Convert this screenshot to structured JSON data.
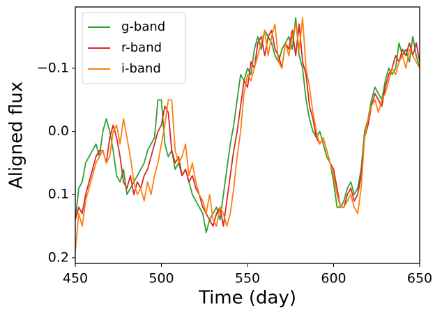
{
  "chart_data": {
    "type": "line",
    "x_label": "Time (day)",
    "y_label": "Aligned flux",
    "x": [
      450,
      452,
      454,
      456,
      458,
      460,
      462,
      464,
      466,
      468,
      470,
      472,
      474,
      476,
      478,
      480,
      482,
      484,
      486,
      488,
      490,
      492,
      494,
      496,
      498,
      500,
      502,
      504,
      506,
      508,
      510,
      512,
      514,
      516,
      518,
      520,
      522,
      524,
      526,
      528,
      530,
      532,
      534,
      536,
      538,
      540,
      542,
      544,
      546,
      548,
      550,
      552,
      554,
      556,
      558,
      560,
      562,
      564,
      566,
      568,
      570,
      572,
      574,
      576,
      578,
      580,
      582,
      584,
      586,
      588,
      590,
      592,
      594,
      596,
      598,
      600,
      602,
      604,
      606,
      608,
      610,
      612,
      614,
      616,
      618,
      620,
      622,
      624,
      626,
      628,
      630,
      632,
      634,
      636,
      638,
      640,
      642,
      644,
      646,
      648,
      650
    ],
    "series": [
      {
        "name": "g-band",
        "color": "#2ca02c",
        "values": [
          0.14,
          0.09,
          0.08,
          0.05,
          0.04,
          0.03,
          0.02,
          0.04,
          0.0,
          -0.02,
          0.0,
          0.03,
          0.07,
          0.08,
          0.06,
          0.1,
          0.09,
          0.08,
          0.07,
          0.06,
          0.05,
          0.03,
          0.02,
          0.01,
          -0.05,
          -0.05,
          0.02,
          0.04,
          0.03,
          0.06,
          0.05,
          0.07,
          0.06,
          0.08,
          0.1,
          0.11,
          0.12,
          0.13,
          0.16,
          0.14,
          0.13,
          0.12,
          0.14,
          0.1,
          0.06,
          0.02,
          -0.01,
          -0.05,
          -0.09,
          -0.08,
          -0.1,
          -0.09,
          -0.13,
          -0.15,
          -0.13,
          -0.16,
          -0.15,
          -0.14,
          -0.12,
          -0.11,
          -0.13,
          -0.14,
          -0.15,
          -0.13,
          -0.18,
          -0.12,
          -0.1,
          -0.05,
          -0.02,
          0.0,
          0.01,
          0.0,
          0.02,
          0.04,
          0.05,
          0.08,
          0.12,
          0.12,
          0.11,
          0.09,
          0.08,
          0.1,
          0.09,
          0.06,
          0.0,
          -0.02,
          -0.05,
          -0.07,
          -0.06,
          -0.05,
          -0.08,
          -0.1,
          -0.09,
          -0.1,
          -0.14,
          -0.12,
          -0.13,
          -0.11,
          -0.15,
          -0.12,
          -0.1
        ]
      },
      {
        "name": "r-band",
        "color": "#d62728",
        "values": [
          0.14,
          0.12,
          0.13,
          0.1,
          0.08,
          0.06,
          0.04,
          0.03,
          0.03,
          0.05,
          0.01,
          -0.01,
          0.01,
          0.04,
          0.08,
          0.09,
          0.07,
          0.1,
          0.08,
          0.09,
          0.07,
          0.06,
          0.04,
          0.02,
          0.0,
          -0.01,
          -0.04,
          -0.03,
          0.03,
          0.05,
          0.04,
          0.07,
          0.06,
          0.08,
          0.07,
          0.09,
          0.1,
          0.12,
          0.13,
          0.14,
          0.15,
          0.13,
          0.12,
          0.15,
          0.11,
          0.07,
          0.03,
          0.0,
          -0.04,
          -0.08,
          -0.07,
          -0.11,
          -0.1,
          -0.14,
          -0.15,
          -0.12,
          -0.15,
          -0.16,
          -0.13,
          -0.12,
          -0.1,
          -0.14,
          -0.13,
          -0.16,
          -0.12,
          -0.17,
          -0.11,
          -0.09,
          -0.04,
          -0.02,
          0.01,
          0.02,
          0.01,
          0.03,
          0.05,
          0.06,
          0.09,
          0.12,
          0.12,
          0.1,
          0.09,
          0.11,
          0.1,
          0.07,
          0.01,
          -0.01,
          -0.04,
          -0.06,
          -0.05,
          -0.04,
          -0.07,
          -0.09,
          -0.1,
          -0.12,
          -0.11,
          -0.13,
          -0.12,
          -0.14,
          -0.12,
          -0.14,
          -0.11
        ]
      },
      {
        "name": "i-band",
        "color": "#ff7f0e",
        "values": [
          0.19,
          0.13,
          0.15,
          0.11,
          0.09,
          0.07,
          0.05,
          0.04,
          0.03,
          0.05,
          0.04,
          0.0,
          -0.01,
          0.02,
          -0.02,
          0.01,
          0.04,
          0.08,
          0.1,
          0.09,
          0.11,
          0.08,
          0.1,
          0.07,
          0.05,
          0.02,
          -0.01,
          -0.05,
          -0.05,
          0.03,
          0.05,
          0.04,
          0.02,
          0.07,
          0.05,
          0.08,
          0.1,
          0.11,
          0.13,
          0.1,
          0.14,
          0.15,
          0.12,
          0.13,
          0.15,
          0.13,
          0.09,
          0.04,
          0.0,
          -0.06,
          -0.09,
          -0.08,
          -0.1,
          -0.12,
          -0.14,
          -0.16,
          -0.12,
          -0.15,
          -0.17,
          -0.11,
          -0.1,
          -0.14,
          -0.12,
          -0.15,
          -0.17,
          -0.13,
          -0.18,
          -0.1,
          -0.07,
          -0.03,
          0.0,
          0.02,
          0.01,
          0.03,
          0.05,
          0.07,
          0.1,
          0.12,
          0.12,
          0.11,
          0.1,
          0.12,
          0.13,
          0.09,
          0.01,
          -0.02,
          -0.04,
          -0.05,
          -0.03,
          -0.05,
          -0.06,
          -0.08,
          -0.1,
          -0.09,
          -0.11,
          -0.12,
          -0.1,
          -0.13,
          -0.12,
          -0.11,
          -0.1
        ]
      }
    ],
    "xlim": [
      450,
      650
    ],
    "xticks": [
      450,
      500,
      550,
      600,
      650
    ],
    "ylim": [
      0.209,
      -0.197
    ],
    "y_inverted": true,
    "yticks": [
      {
        "value": -0.1,
        "label": "−0.1"
      },
      {
        "value": 0.0,
        "label": "0.0"
      },
      0.1,
      0.2
    ],
    "grid": false,
    "legend": "upper left"
  }
}
